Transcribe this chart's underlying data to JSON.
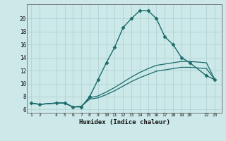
{
  "xlabel": "Humidex (Indice chaleur)",
  "bg_color": "#cce8e8",
  "grid_color": "#aacfcf",
  "line_color": "#1a6b6b",
  "x_ticks": [
    1,
    2,
    4,
    5,
    6,
    7,
    8,
    9,
    10,
    11,
    12,
    13,
    14,
    15,
    16,
    17,
    18,
    19,
    20,
    22,
    23
  ],
  "y_ticks": [
    6,
    8,
    10,
    12,
    14,
    16,
    18,
    20
  ],
  "xlim": [
    0.5,
    23.8
  ],
  "ylim": [
    5.5,
    22.2
  ],
  "lines": [
    {
      "x": [
        1,
        2,
        4,
        5,
        6,
        7,
        8,
        9,
        10,
        11,
        12,
        13,
        14,
        15,
        16,
        17,
        18,
        19,
        20,
        22,
        23
      ],
      "y": [
        7.0,
        6.8,
        7.0,
        7.0,
        6.4,
        6.4,
        8.0,
        10.6,
        13.2,
        15.6,
        18.6,
        20.0,
        21.2,
        21.2,
        20.0,
        17.2,
        16.0,
        14.0,
        13.2,
        11.2,
        10.6
      ],
      "marker": "D",
      "markersize": 2.5,
      "linewidth": 1.0
    },
    {
      "x": [
        1,
        2,
        4,
        5,
        6,
        7,
        8,
        9,
        10,
        11,
        12,
        13,
        14,
        15,
        16,
        17,
        18,
        19,
        20,
        22,
        23
      ],
      "y": [
        7.0,
        6.8,
        7.0,
        7.0,
        6.4,
        6.5,
        7.8,
        8.1,
        8.7,
        9.4,
        10.2,
        11.0,
        11.7,
        12.3,
        12.8,
        13.0,
        13.2,
        13.4,
        13.4,
        13.2,
        10.6
      ],
      "marker": null,
      "markersize": 0,
      "linewidth": 0.9
    },
    {
      "x": [
        1,
        2,
        4,
        5,
        6,
        7,
        8,
        9,
        10,
        11,
        12,
        13,
        14,
        15,
        16,
        17,
        18,
        19,
        20,
        22,
        23
      ],
      "y": [
        7.0,
        6.8,
        7.0,
        7.0,
        6.4,
        6.5,
        7.6,
        7.8,
        8.3,
        8.9,
        9.6,
        10.3,
        10.9,
        11.4,
        11.9,
        12.1,
        12.3,
        12.5,
        12.5,
        12.3,
        10.6
      ],
      "marker": null,
      "markersize": 0,
      "linewidth": 0.9
    }
  ]
}
